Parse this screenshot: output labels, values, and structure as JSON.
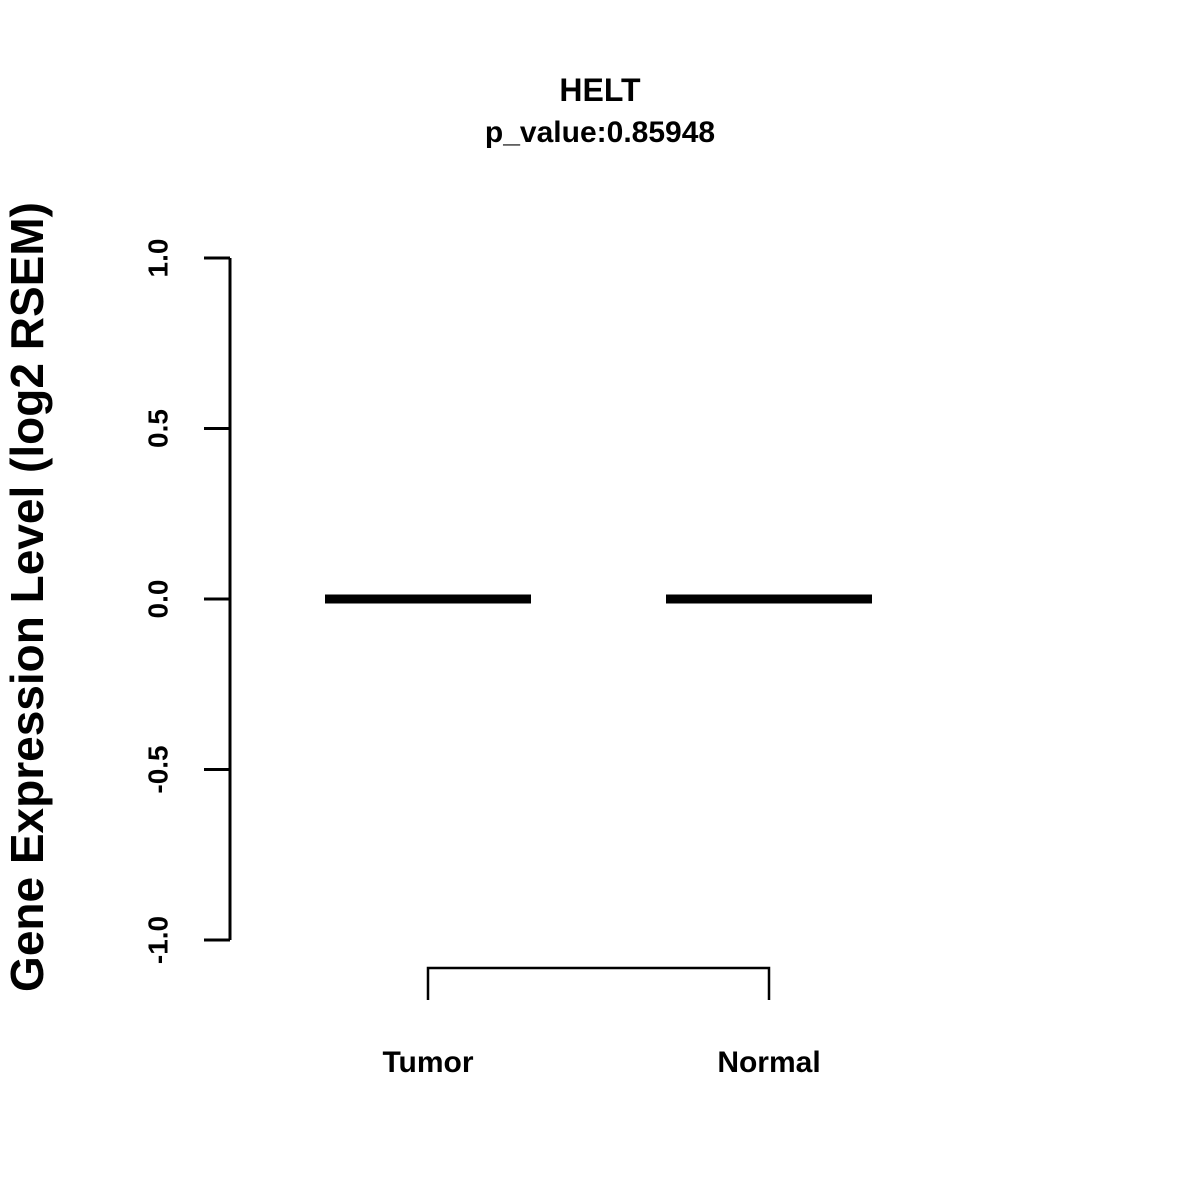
{
  "title": "HELT",
  "subtitle": "p_value:0.85948",
  "chart_data": {
    "type": "boxplot",
    "title": "HELT",
    "subtitle": "p_value:0.85948",
    "ylabel": "Gene Expression Level (log2 RSEM)",
    "categories": [
      "Tumor",
      "Normal"
    ],
    "values": [
      0.0,
      0.0
    ],
    "yticks": [
      1.0,
      0.5,
      0.0,
      -0.5,
      -1.0
    ],
    "ytick_labels": [
      "1.0",
      "0.5",
      "0.0",
      "-0.5",
      "-1.0"
    ],
    "ylim": [
      -1.0,
      1.0
    ],
    "grid": false,
    "legend": "none",
    "line_color": "#000000",
    "background": "#ffffff"
  }
}
